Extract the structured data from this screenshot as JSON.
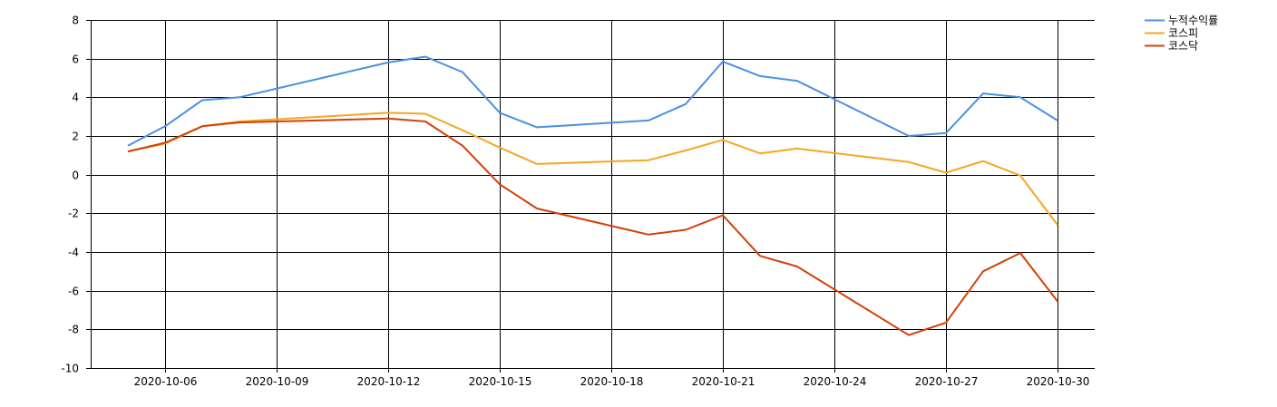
{
  "chart_data": {
    "type": "line",
    "x_type": "date",
    "xlim": [
      "2020-10-04",
      "2020-10-31"
    ],
    "x_ticks": [
      "2020-10-06",
      "2020-10-09",
      "2020-10-12",
      "2020-10-15",
      "2020-10-18",
      "2020-10-21",
      "2020-10-24",
      "2020-10-27",
      "2020-10-30"
    ],
    "ylim": [
      -10,
      8
    ],
    "y_ticks": [
      -10,
      -8,
      -6,
      -4,
      -2,
      0,
      2,
      4,
      6,
      8
    ],
    "grid": true,
    "legend_position": "top-right, outside plot",
    "x": [
      "2020-10-05",
      "2020-10-06",
      "2020-10-07",
      "2020-10-08",
      "2020-10-12",
      "2020-10-13",
      "2020-10-14",
      "2020-10-15",
      "2020-10-16",
      "2020-10-19",
      "2020-10-20",
      "2020-10-21",
      "2020-10-22",
      "2020-10-23",
      "2020-10-26",
      "2020-10-27",
      "2020-10-28",
      "2020-10-29",
      "2020-10-30"
    ],
    "series": [
      {
        "name": "누적수익률",
        "color": "#4a90e2",
        "values": [
          1.5,
          2.5,
          3.85,
          4.0,
          5.8,
          6.1,
          5.3,
          3.2,
          2.45,
          2.8,
          3.65,
          5.85,
          5.1,
          4.85,
          2.0,
          2.15,
          4.2,
          4.0,
          2.8
        ]
      },
      {
        "name": "코스피",
        "color": "#f5a623",
        "values": [
          1.2,
          1.6,
          2.5,
          2.75,
          3.2,
          3.15,
          2.3,
          1.4,
          0.55,
          0.75,
          1.25,
          1.8,
          1.1,
          1.35,
          0.65,
          0.1,
          0.7,
          -0.05,
          -2.6
        ]
      },
      {
        "name": "코스닥",
        "color": "#d43f0a",
        "values": [
          1.2,
          1.65,
          2.5,
          2.7,
          2.9,
          2.75,
          1.5,
          -0.5,
          -1.75,
          -3.1,
          -2.85,
          -2.1,
          -4.2,
          -4.75,
          -8.3,
          -7.65,
          -5.0,
          -4.05,
          -6.55
        ]
      }
    ]
  }
}
